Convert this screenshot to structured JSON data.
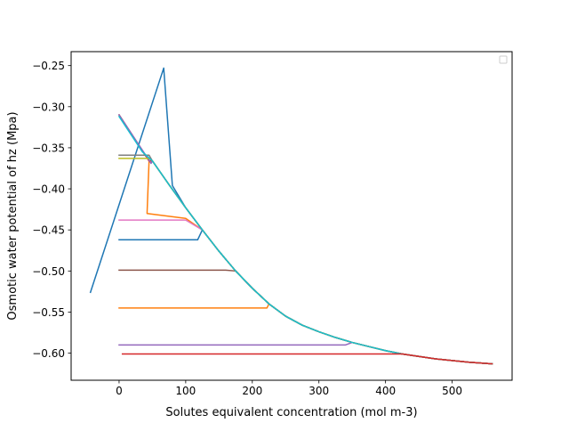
{
  "chart_data": {
    "type": "line",
    "title": "",
    "xlabel": "Solutes equivalent concentration (mol m-3)",
    "ylabel": "Osmotic water potential of hz (Mpa)",
    "xlim": [
      -72,
      590
    ],
    "ylim": [
      -0.633,
      -0.233
    ],
    "xticks": [
      0,
      100,
      200,
      300,
      400,
      500
    ],
    "yticks": [
      -0.6,
      -0.55,
      -0.5,
      -0.45,
      -0.4,
      -0.35,
      -0.3,
      -0.25
    ],
    "xtick_labels": [
      "0",
      "100",
      "200",
      "300",
      "400",
      "500"
    ],
    "ytick_labels": [
      "−0.60",
      "−0.55",
      "−0.50",
      "−0.45",
      "−0.40",
      "−0.35",
      "−0.30",
      "−0.25"
    ],
    "legend": {
      "placement": "top-right",
      "entries": []
    },
    "grid": false,
    "envelope": {
      "x": [
        0,
        25,
        50,
        75,
        100,
        125,
        150,
        175,
        200,
        225,
        250,
        275,
        300,
        325,
        350,
        375,
        400,
        425,
        450,
        475,
        500,
        525,
        560
      ],
      "y": [
        -0.31,
        -0.337,
        -0.366,
        -0.395,
        -0.423,
        -0.45,
        -0.476,
        -0.5,
        -0.521,
        -0.54,
        -0.555,
        -0.566,
        -0.574,
        -0.581,
        -0.587,
        -0.592,
        -0.597,
        -0.601,
        -0.604,
        -0.607,
        -0.609,
        -0.611,
        -0.613
      ]
    },
    "series": [
      {
        "color": "#1f77b4",
        "x": [
          -43,
          67,
          80,
          100
        ],
        "y": [
          -0.526,
          -0.253,
          -0.396,
          -0.423
        ],
        "follow": 100
      },
      {
        "color": "#1f77b4",
        "x": [
          0,
          118
        ],
        "y": [
          -0.462,
          -0.462
        ],
        "follow": 118
      },
      {
        "color": "#ff7f0e",
        "x": [
          0,
          45,
          42,
          100
        ],
        "y": [
          -0.31,
          -0.366,
          -0.43,
          -0.436
        ],
        "follow": 100
      },
      {
        "color": "#ff7f0e",
        "x": [
          0,
          222
        ],
        "y": [
          -0.545,
          -0.545
        ],
        "follow": 222
      },
      {
        "color": "#2ca02c",
        "x": [
          0,
          40
        ],
        "y": [
          -0.31,
          -0.36
        ],
        "follow": 40
      },
      {
        "color": "#d62728",
        "x": [
          0,
          45
        ],
        "y": [
          -0.31,
          -0.366
        ],
        "follow": 45
      },
      {
        "color": "#9467bd",
        "x": [
          0,
          48
        ],
        "y": [
          -0.31,
          -0.369
        ],
        "follow": 48
      },
      {
        "color": "#9467bd",
        "x": [
          0,
          340
        ],
        "y": [
          -0.59,
          -0.59
        ],
        "follow": 340
      },
      {
        "color": "#8c564b",
        "x": [
          0,
          160
        ],
        "y": [
          -0.499,
          -0.499
        ],
        "follow": 160
      },
      {
        "color": "#e377c2",
        "x": [
          0,
          100
        ],
        "y": [
          -0.438,
          -0.438
        ],
        "follow": 100
      },
      {
        "color": "#7f7f7f",
        "x": [
          0,
          45
        ],
        "y": [
          -0.359,
          -0.359
        ],
        "follow": 45
      },
      {
        "color": "#bcbd22",
        "x": [
          0,
          45
        ],
        "y": [
          -0.363,
          -0.363
        ],
        "follow": 45
      },
      {
        "color": "#17becf",
        "x": [
          0,
          35
        ],
        "y": [
          -0.312,
          -0.355
        ],
        "follow": 35
      },
      {
        "color": "#d62728",
        "x": [
          5,
          400
        ],
        "y": [
          -0.601,
          -0.601
        ],
        "follow": 400
      }
    ]
  }
}
